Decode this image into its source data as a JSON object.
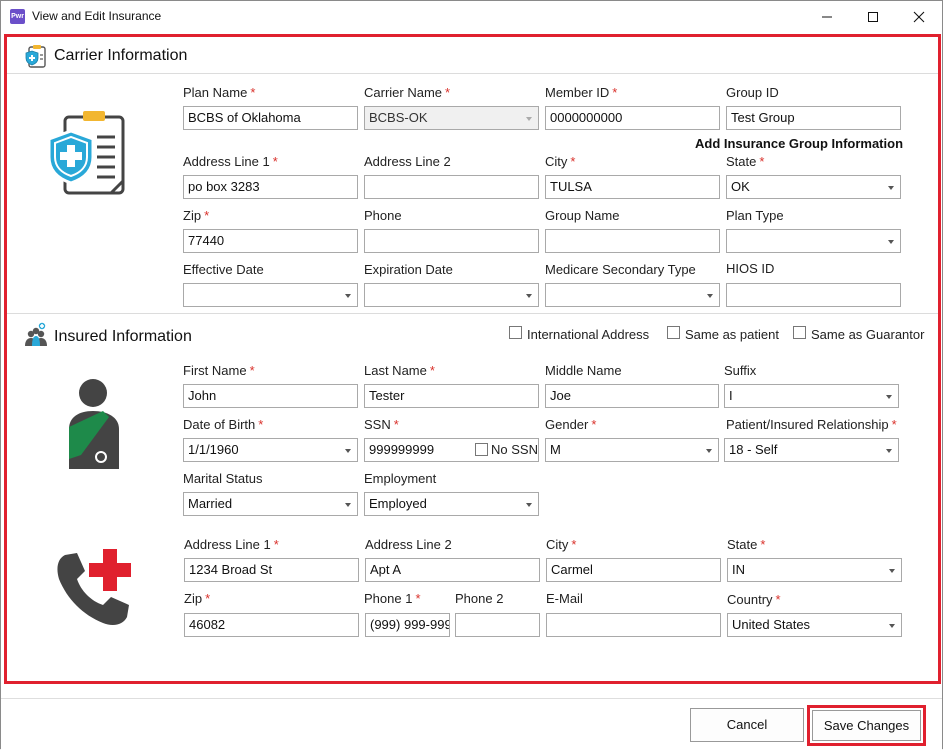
{
  "window": {
    "title": "View and Edit Insurance",
    "app_icon": "Pwr"
  },
  "carrier": {
    "section_title": "Carrier Information",
    "plan_name": {
      "label": "Plan Name",
      "value": "BCBS of Oklahoma"
    },
    "carrier_name": {
      "label": "Carrier Name",
      "value": "BCBS-OK"
    },
    "member_id": {
      "label": "Member ID",
      "value": "0000000000"
    },
    "group_id": {
      "label": "Group ID",
      "value": "Test Group"
    },
    "add_group_link": "Add Insurance Group Information",
    "address1": {
      "label": "Address Line 1",
      "value": "po box 3283"
    },
    "address2": {
      "label": "Address Line 2",
      "value": ""
    },
    "city": {
      "label": "City",
      "value": "TULSA"
    },
    "state": {
      "label": "State",
      "value": "OK"
    },
    "zip": {
      "label": "Zip",
      "value": "77440"
    },
    "phone": {
      "label": "Phone",
      "value": ""
    },
    "group_name": {
      "label": "Group Name",
      "value": ""
    },
    "plan_type": {
      "label": "Plan Type",
      "value": ""
    },
    "effective_date": {
      "label": "Effective Date",
      "value": ""
    },
    "expiration_date": {
      "label": "Expiration Date",
      "value": ""
    },
    "medicare_secondary": {
      "label": "Medicare Secondary Type",
      "value": ""
    },
    "hios_id": {
      "label": "HIOS ID",
      "value": ""
    }
  },
  "insured": {
    "section_title": "Insured Information",
    "international_address": "International Address",
    "same_as_patient": "Same as patient",
    "same_as_guarantor": "Same as Guarantor",
    "first_name": {
      "label": "First Name",
      "value": "John"
    },
    "last_name": {
      "label": "Last Name",
      "value": "Tester"
    },
    "middle_name": {
      "label": "Middle Name",
      "value": "Joe"
    },
    "suffix": {
      "label": "Suffix",
      "value": "I"
    },
    "dob": {
      "label": "Date of Birth",
      "value": "1/1/1960"
    },
    "ssn": {
      "label": "SSN",
      "value": "999999999"
    },
    "no_ssn": "No SSN",
    "gender": {
      "label": "Gender",
      "value": "M"
    },
    "relationship": {
      "label": "Patient/Insured Relationship",
      "value": "18 - Self"
    },
    "marital_status": {
      "label": "Marital Status",
      "value": "Married"
    },
    "employment": {
      "label": "Employment",
      "value": "Employed"
    },
    "address1": {
      "label": "Address Line 1",
      "value": "1234 Broad St"
    },
    "address2": {
      "label": "Address Line 2",
      "value": "Apt A"
    },
    "city": {
      "label": "City",
      "value": "Carmel"
    },
    "state": {
      "label": "State",
      "value": "IN"
    },
    "zip": {
      "label": "Zip",
      "value": "46082"
    },
    "phone1": {
      "label": "Phone 1",
      "value": "(999) 999-999"
    },
    "phone2": {
      "label": "Phone 2",
      "value": ""
    },
    "email": {
      "label": "E-Mail",
      "value": ""
    },
    "country": {
      "label": "Country",
      "value": "United States"
    }
  },
  "footer": {
    "cancel": "Cancel",
    "save": "Save Changes"
  },
  "colors": {
    "highlight": "#e0202e",
    "required": "#d9302a",
    "shield": "#29a8d8",
    "sling": "#1e8a4a",
    "cross": "#e0202e",
    "clipboard_accent": "#f2b630"
  },
  "icons": [
    "app-icon",
    "minimize-icon",
    "maximize-icon",
    "close-icon",
    "carrier-card-icon",
    "insurance-clipboard-icon",
    "insured-people-icon",
    "injured-person-icon",
    "phone-medical-icon"
  ]
}
